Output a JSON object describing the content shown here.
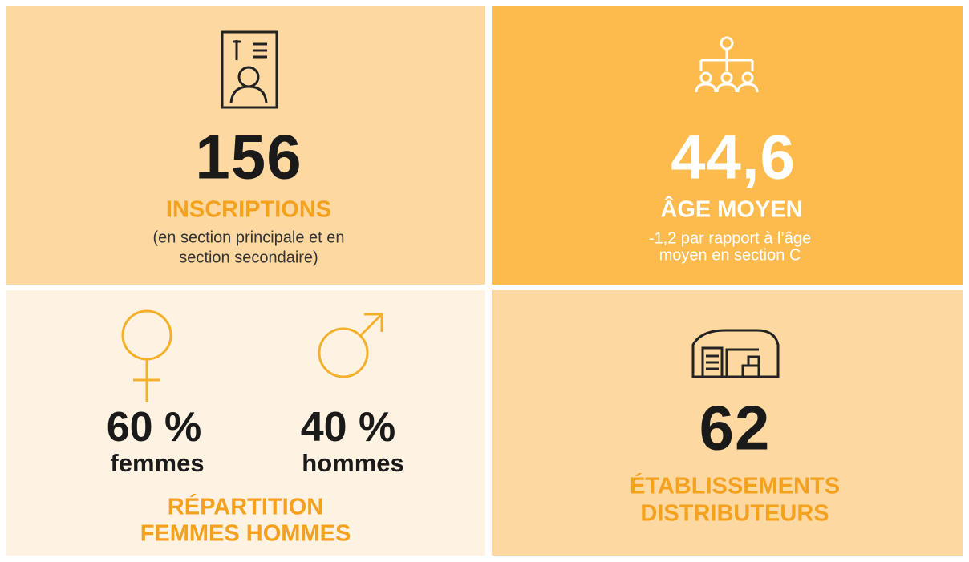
{
  "panels": [
    {
      "value": "156",
      "label": "INSCRIPTIONS",
      "note": [
        "(en section principale et en",
        "section secondaire)"
      ]
    },
    {
      "value": "44,6",
      "label": "ÂGE MOYEN",
      "note": [
        "-1,2 par rapport à l’âge",
        "moyen en section C"
      ]
    },
    {
      "items": [
        {
          "value": "60 %",
          "label": "femmes"
        },
        {
          "value": "40 %",
          "label": "hommes"
        }
      ],
      "label": [
        "RÉPARTITION",
        "FEMMES HOMMES"
      ]
    },
    {
      "value": "62",
      "label": [
        "ÉTABLISSEMENTS",
        "DISTRIBUTEURS"
      ]
    }
  ]
}
